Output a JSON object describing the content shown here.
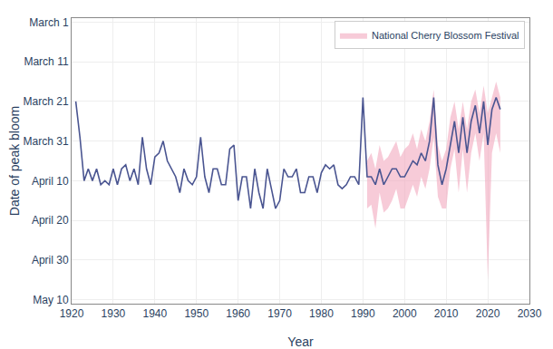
{
  "chart_data": {
    "type": "line",
    "xlabel": "Year",
    "ylabel": "Date of peak bloom",
    "x": [
      1921,
      1922,
      1923,
      1924,
      1925,
      1926,
      1927,
      1928,
      1929,
      1930,
      1931,
      1932,
      1933,
      1934,
      1935,
      1936,
      1937,
      1938,
      1939,
      1940,
      1941,
      1942,
      1943,
      1944,
      1945,
      1946,
      1947,
      1948,
      1949,
      1950,
      1951,
      1952,
      1953,
      1954,
      1955,
      1956,
      1957,
      1958,
      1959,
      1960,
      1961,
      1962,
      1963,
      1964,
      1965,
      1966,
      1967,
      1968,
      1969,
      1970,
      1971,
      1972,
      1973,
      1974,
      1975,
      1976,
      1977,
      1978,
      1979,
      1980,
      1981,
      1982,
      1983,
      1984,
      1985,
      1986,
      1987,
      1988,
      1989,
      1990,
      1991,
      1992,
      1993,
      1994,
      1995,
      1996,
      1997,
      1998,
      1999,
      2000,
      2001,
      2002,
      2003,
      2004,
      2005,
      2006,
      2007,
      2008,
      2009,
      2010,
      2011,
      2012,
      2013,
      2014,
      2015,
      2016,
      2017,
      2018,
      2019,
      2020,
      2021,
      2022,
      2023
    ],
    "series": [
      {
        "type": "line",
        "color": "#4a5591",
        "values": [
          80,
          89,
          100,
          97,
          100,
          97,
          101,
          100,
          101,
          97,
          101,
          97,
          96,
          100,
          97,
          101,
          89,
          97,
          101,
          94,
          93,
          90,
          95,
          97,
          99,
          103,
          97,
          100,
          101,
          99,
          89,
          99,
          103,
          97,
          97,
          101,
          101,
          92,
          91,
          105,
          99,
          99,
          107,
          97,
          103,
          107,
          97,
          102,
          107,
          105,
          97,
          99,
          99,
          97,
          103,
          103,
          99,
          99,
          103,
          98,
          96,
          97,
          96,
          101,
          102,
          101,
          99,
          99,
          101,
          79,
          99,
          99,
          101,
          97,
          101,
          99,
          97,
          97,
          99,
          99,
          97,
          95,
          96,
          93,
          95,
          90,
          79,
          96,
          101,
          97,
          91,
          85,
          93,
          84,
          93,
          85,
          81,
          88,
          80,
          91,
          82,
          79,
          82
        ]
      },
      {
        "type": "band",
        "name": "National Cherry Blossom Festival",
        "color": "#f2a8be",
        "values": [
          null,
          null,
          null,
          null,
          null,
          null,
          null,
          null,
          null,
          null,
          null,
          null,
          null,
          null,
          null,
          null,
          null,
          null,
          null,
          null,
          null,
          null,
          null,
          null,
          null,
          null,
          null,
          null,
          null,
          null,
          null,
          null,
          null,
          null,
          null,
          null,
          null,
          null,
          null,
          null,
          null,
          null,
          null,
          null,
          null,
          null,
          null,
          null,
          null,
          null,
          null,
          null,
          null,
          null,
          null,
          null,
          null,
          null,
          null,
          null,
          null,
          null,
          null,
          null,
          null,
          null,
          null,
          null,
          null,
          null,
          95,
          93,
          97,
          91,
          95,
          94,
          92,
          90,
          94,
          92,
          91,
          88,
          92,
          87,
          90,
          85,
          77,
          91,
          95,
          92,
          84,
          80,
          87,
          80,
          87,
          80,
          77,
          83,
          76,
          83,
          79,
          75,
          79
        ],
        "end_values": [
          null,
          null,
          null,
          null,
          null,
          null,
          null,
          null,
          null,
          null,
          null,
          null,
          null,
          null,
          null,
          null,
          null,
          null,
          null,
          null,
          null,
          null,
          null,
          null,
          null,
          null,
          null,
          null,
          null,
          null,
          null,
          null,
          null,
          null,
          null,
          null,
          null,
          null,
          null,
          null,
          null,
          null,
          null,
          null,
          null,
          null,
          null,
          null,
          null,
          null,
          null,
          null,
          null,
          null,
          null,
          null,
          null,
          null,
          null,
          null,
          null,
          null,
          null,
          null,
          null,
          null,
          null,
          null,
          null,
          null,
          107,
          106,
          112,
          103,
          108,
          107,
          105,
          102,
          107,
          107,
          104,
          101,
          104,
          99,
          102,
          97,
          89,
          104,
          107,
          107,
          97,
          92,
          103,
          92,
          103,
          93,
          88,
          95,
          88,
          125,
          93,
          88,
          93
        ]
      }
    ],
    "xlim": [
      1920,
      2030
    ],
    "xticks": [
      1920,
      1930,
      1940,
      1950,
      1960,
      1970,
      1980,
      1990,
      2000,
      2010,
      2020,
      2030
    ],
    "ylim": [
      131,
      59
    ],
    "yticks": [
      {
        "value": 60,
        "label": "March 1"
      },
      {
        "value": 70,
        "label": "March 11"
      },
      {
        "value": 80,
        "label": "March 21"
      },
      {
        "value": 90,
        "label": "March 31"
      },
      {
        "value": 100,
        "label": "April 10"
      },
      {
        "value": 110,
        "label": "April 20"
      },
      {
        "value": 120,
        "label": "April 30"
      },
      {
        "value": 130,
        "label": "May 10"
      }
    ],
    "grid": true,
    "legend": "upper right"
  }
}
